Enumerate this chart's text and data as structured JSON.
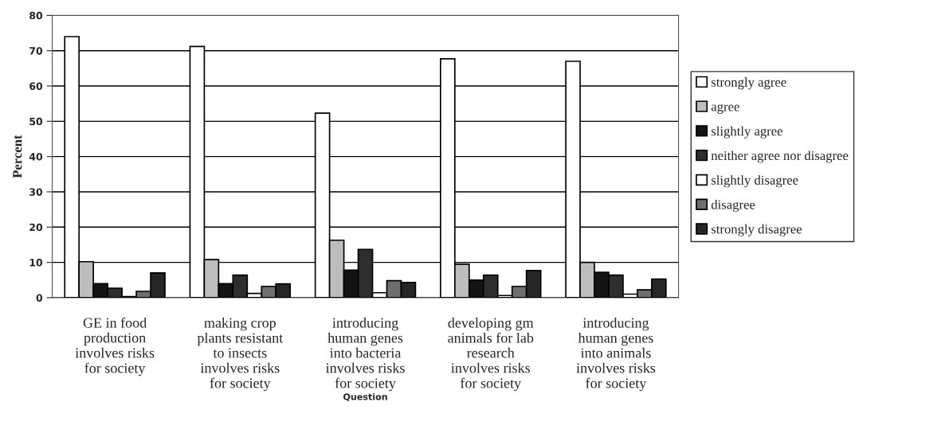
{
  "chart_data": {
    "type": "bar",
    "xlabel": "Question",
    "ylabel": "Percent",
    "categories": [
      "GE in food\nproduction\ninvolves risks\nfor society",
      "making crop\nplants resistant\nto insects\ninvolves risks\nfor society",
      "introducing\nhuman genes\ninto bacteria\ninvolves risks\nfor society",
      "developing gm\nanimals for lab\nresearch\ninvolves risks\nfor society",
      "introducing\nhuman genes\ninto animals\ninvolves risks\nfor society"
    ],
    "series": [
      {
        "name": "strongly agree",
        "color": "#ffffff",
        "values": [
          74,
          71.2,
          52.3,
          67.7,
          67
        ]
      },
      {
        "name": "agree",
        "color": "#bdbdbd",
        "values": [
          10.2,
          10.8,
          16.3,
          9.5,
          10
        ]
      },
      {
        "name": "slightly agree",
        "color": "#141414",
        "values": [
          4,
          4,
          7.8,
          5,
          7.2
        ]
      },
      {
        "name": "neither agree nor disagree",
        "color": "#2e2e2e",
        "values": [
          2.7,
          6.4,
          13.7,
          6.4,
          6.4
        ]
      },
      {
        "name": "slightly disagree",
        "color": "#ffffff",
        "values": [
          0.3,
          1.2,
          1.4,
          0.6,
          1
        ]
      },
      {
        "name": "disagree",
        "color": "#6e6e6e",
        "values": [
          1.8,
          3.2,
          4.8,
          3.2,
          2.2
        ]
      },
      {
        "name": "strongly disagree",
        "color": "#262626",
        "values": [
          7,
          3.9,
          4.3,
          7.7,
          5.3
        ]
      }
    ],
    "ylim": [
      0,
      80
    ],
    "yticks": [
      0,
      10,
      20,
      30,
      40,
      50,
      60,
      70,
      80
    ],
    "grid": "y",
    "legend": "right"
  }
}
